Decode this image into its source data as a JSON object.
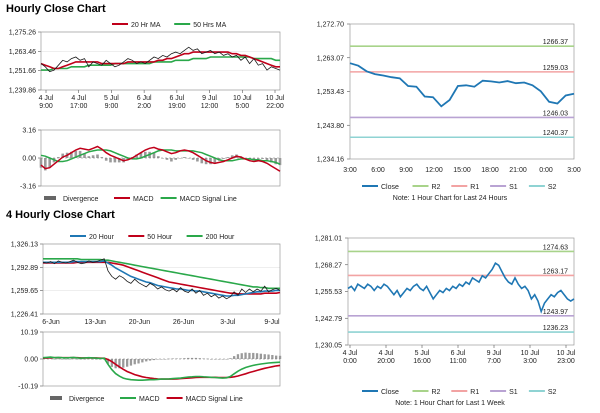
{
  "sections": {
    "hourly_title": "Hourly Close Chart",
    "four_hourly_title": "4 Hourly Close Chart"
  },
  "colors": {
    "close": "#1f77b4",
    "ma_short": "#c0001a",
    "ma_long": "#2aa84a",
    "ma_200": "#1f77b4",
    "hist": "#9a9a9a",
    "r2": "#a8d38a",
    "r1": "#f2a3a3",
    "s1": "#b9a3d3",
    "s2": "#8fd3d3"
  },
  "chart_data": [
    {
      "id": "h1_price_ma",
      "type": "line",
      "legend": [
        "20 Hr MA",
        "50 Hrs MA"
      ],
      "y_ticks": [
        "1,275.26",
        "1,263.46",
        "1,251.66",
        "1,239.86"
      ],
      "ylim": [
        1239.86,
        1275.26
      ],
      "x_ticks": [
        "4 Jul\n9:00",
        "4 Jul\n17:00",
        "5 Jul\n9:00",
        "6 Jul\n2:00",
        "6 Jul\n19:00",
        "9 Jul\n12:00",
        "10 Jul\n5:00",
        "10 Jul\n22:00"
      ],
      "close": [
        1256,
        1254,
        1251,
        1252,
        1255,
        1258,
        1257,
        1259,
        1260,
        1258,
        1259,
        1254,
        1257,
        1256,
        1255,
        1258,
        1256,
        1254,
        1255,
        1257,
        1259,
        1258,
        1256,
        1257,
        1256,
        1258,
        1260,
        1259,
        1261,
        1260,
        1262,
        1263,
        1262,
        1264,
        1266,
        1264,
        1265,
        1262,
        1263,
        1264,
        1262,
        1263,
        1261,
        1262,
        1260,
        1261,
        1258,
        1260,
        1256,
        1259,
        1255,
        1256,
        1252,
        1254,
        1253,
        1252
      ],
      "ma20": [
        1256,
        1255,
        1254,
        1253,
        1253,
        1254,
        1255,
        1256,
        1257,
        1257,
        1257,
        1257,
        1257,
        1257,
        1256,
        1256,
        1256,
        1256,
        1256,
        1256,
        1257,
        1257,
        1257,
        1257,
        1257,
        1257,
        1257,
        1258,
        1258,
        1259,
        1259,
        1260,
        1261,
        1262,
        1262,
        1263,
        1263,
        1263,
        1263,
        1263,
        1263,
        1263,
        1263,
        1263,
        1262,
        1262,
        1261,
        1261,
        1260,
        1259,
        1258,
        1257,
        1256,
        1255,
        1254,
        1254
      ],
      "ma50": [
        1252,
        1252,
        1252,
        1253,
        1253,
        1253,
        1253,
        1254,
        1254,
        1254,
        1254,
        1255,
        1255,
        1255,
        1255,
        1255,
        1255,
        1256,
        1256,
        1256,
        1256,
        1256,
        1256,
        1256,
        1256,
        1256,
        1257,
        1257,
        1257,
        1257,
        1257,
        1258,
        1258,
        1258,
        1258,
        1259,
        1259,
        1259,
        1259,
        1260,
        1260,
        1260,
        1260,
        1260,
        1260,
        1260,
        1260,
        1260,
        1260,
        1259,
        1259,
        1259,
        1259,
        1259,
        1258,
        1258
      ]
    },
    {
      "id": "h1_macd",
      "type": "line",
      "legend": [
        "Divergence",
        "MACD",
        "MACD Signal Line"
      ],
      "y_ticks": [
        "3.16",
        "0.00",
        "-3.16"
      ],
      "ylim": [
        -3.16,
        3.16
      ],
      "macd": [
        -0.8,
        -1.2,
        -1.1,
        -0.7,
        -0.3,
        0.1,
        0.3,
        0.6,
        0.9,
        1.1,
        1.0,
        0.9,
        1.1,
        1.3,
        1.0,
        0.6,
        0.3,
        0.1,
        -0.1,
        -0.3,
        -0.2,
        0.0,
        0.3,
        0.6,
        0.9,
        1.1,
        1.2,
        1.0,
        0.9,
        0.7,
        0.5,
        0.6,
        0.8,
        0.9,
        0.8,
        0.6,
        0.3,
        0.0,
        -0.3,
        -0.5,
        -0.6,
        -0.5,
        -0.4,
        -0.2,
        0.0,
        0.2,
        0.1,
        -0.1,
        -0.3,
        -0.4,
        -0.3,
        -0.4,
        -0.6,
        -0.9,
        -1.2,
        -1.5
      ],
      "signal": [
        0.3,
        0.2,
        0.0,
        -0.2,
        -0.4,
        -0.4,
        -0.3,
        -0.1,
        0.1,
        0.3,
        0.5,
        0.7,
        0.8,
        0.9,
        0.9,
        0.9,
        0.8,
        0.6,
        0.4,
        0.2,
        0.0,
        -0.1,
        -0.1,
        0.0,
        0.2,
        0.4,
        0.6,
        0.8,
        0.9,
        0.9,
        0.9,
        0.8,
        0.8,
        0.8,
        0.8,
        0.8,
        0.7,
        0.6,
        0.4,
        0.2,
        0.0,
        -0.2,
        -0.3,
        -0.3,
        -0.3,
        -0.2,
        -0.1,
        -0.1,
        -0.1,
        -0.2,
        -0.2,
        -0.3,
        -0.3,
        -0.4,
        -0.5,
        -0.7
      ]
    },
    {
      "id": "h1_close_24h",
      "type": "line",
      "legend": [
        "Close",
        "R2",
        "R1",
        "S1",
        "S2"
      ],
      "y_ticks": [
        "1,272.70",
        "1,263.07",
        "1,253.43",
        "1,243.80",
        "1,234.16"
      ],
      "ylim": [
        1234.16,
        1272.7
      ],
      "x_ticks": [
        "3:00",
        "6:00",
        "9:00",
        "12:00",
        "15:00",
        "18:00",
        "21:00",
        "0:00",
        "3:00"
      ],
      "close": [
        1261.5,
        1260.8,
        1259.2,
        1258.4,
        1258.0,
        1257.5,
        1257.2,
        1255.0,
        1254.8,
        1252.0,
        1251.8,
        1249.2,
        1251.0,
        1255.0,
        1255.2,
        1254.8,
        1256.5,
        1256.3,
        1256.0,
        1256.4,
        1255.8,
        1256.0,
        1255.2,
        1253.5,
        1250.5,
        1250.0,
        1252.3,
        1252.8
      ],
      "levels": {
        "R2": 1266.37,
        "R1": 1259.03,
        "S1": 1246.03,
        "S2": 1240.37
      },
      "level_labels": [
        "1266.37",
        "1259.03",
        "1246.03",
        "1240.37"
      ],
      "note": "Note: 1 Hour Chart for Last 24 Hours"
    },
    {
      "id": "h4_price_ma",
      "type": "line",
      "legend": [
        "20 Hour",
        "50 Hour",
        "200 Hour"
      ],
      "y_ticks": [
        "1,326.13",
        "1,292.89",
        "1,259.65",
        "1,226.41"
      ],
      "ylim": [
        1226.41,
        1326.13
      ],
      "x_ticks": [
        "6-Jun",
        "13-Jun",
        "20-Jun",
        "26-Jun",
        "3-Jul",
        "9-Jul"
      ],
      "close": [
        1300,
        1299,
        1301,
        1298,
        1302,
        1300,
        1299,
        1301,
        1303,
        1300,
        1298,
        1299,
        1302,
        1300,
        1301,
        1303,
        1305,
        1288,
        1280,
        1276,
        1281,
        1278,
        1273,
        1270,
        1276,
        1271,
        1268,
        1265,
        1270,
        1267,
        1262,
        1265,
        1261,
        1259,
        1262,
        1258,
        1264,
        1259,
        1257,
        1262,
        1256,
        1260,
        1253,
        1256,
        1251,
        1254,
        1249,
        1252,
        1248,
        1251,
        1258,
        1253,
        1262,
        1257,
        1262,
        1258,
        1262,
        1259,
        1266,
        1258,
        1261,
        1263,
        1260
      ],
      "ma20": [
        1300,
        1300,
        1300,
        1300,
        1300,
        1300,
        1300,
        1300,
        1301,
        1301,
        1301,
        1301,
        1301,
        1301,
        1301,
        1301,
        1302,
        1299,
        1296,
        1292,
        1289,
        1286,
        1283,
        1280,
        1278,
        1276,
        1274,
        1272,
        1271,
        1269,
        1267,
        1266,
        1265,
        1264,
        1263,
        1262,
        1262,
        1261,
        1260,
        1260,
        1259,
        1259,
        1258,
        1257,
        1256,
        1255,
        1254,
        1253,
        1252,
        1252,
        1253,
        1253,
        1254,
        1255,
        1256,
        1257,
        1258,
        1258,
        1259,
        1259,
        1259,
        1260,
        1260
      ],
      "ma50": [
        1299,
        1299,
        1299,
        1299,
        1299,
        1299,
        1299,
        1299,
        1299,
        1300,
        1300,
        1300,
        1300,
        1300,
        1300,
        1300,
        1300,
        1300,
        1299,
        1298,
        1297,
        1296,
        1294,
        1292,
        1290,
        1288,
        1286,
        1284,
        1282,
        1280,
        1278,
        1276,
        1274,
        1272,
        1271,
        1270,
        1269,
        1268,
        1267,
        1266,
        1265,
        1264,
        1263,
        1262,
        1261,
        1260,
        1259,
        1258,
        1257,
        1256,
        1256,
        1255,
        1255,
        1255,
        1255,
        1255,
        1255,
        1255,
        1256,
        1256,
        1256,
        1256,
        1257
      ],
      "ma200": [
        1305,
        1305,
        1305,
        1305,
        1305,
        1305,
        1305,
        1305,
        1305,
        1305,
        1304,
        1304,
        1304,
        1304,
        1304,
        1304,
        1303,
        1303,
        1302,
        1301,
        1300,
        1299,
        1298,
        1297,
        1296,
        1295,
        1294,
        1293,
        1292,
        1291,
        1290,
        1289,
        1288,
        1287,
        1286,
        1285,
        1284,
        1283,
        1282,
        1281,
        1280,
        1279,
        1278,
        1277,
        1276,
        1275,
        1274,
        1273,
        1272,
        1271,
        1270,
        1269,
        1268,
        1267,
        1266,
        1265,
        1265,
        1264,
        1264,
        1263,
        1263,
        1263,
        1263
      ]
    },
    {
      "id": "h4_macd",
      "type": "line",
      "legend": [
        "Divergence",
        "MACD",
        "MACD Signal Line"
      ],
      "y_ticks": [
        "10.19",
        "0.00",
        "-10.19"
      ],
      "ylim": [
        -10.19,
        10.19
      ],
      "macd": [
        0.5,
        0.6,
        0.7,
        0.5,
        0.6,
        0.5,
        0.4,
        0.5,
        0.6,
        0.4,
        0.3,
        0.4,
        0.5,
        0.4,
        0.3,
        0.2,
        0.3,
        -2.0,
        -4.0,
        -5.5,
        -6.5,
        -7.2,
        -7.6,
        -7.8,
        -7.9,
        -8.0,
        -8.0,
        -7.9,
        -7.8,
        -7.8,
        -7.7,
        -7.6,
        -7.6,
        -7.5,
        -7.4,
        -7.3,
        -7.2,
        -7.0,
        -6.8,
        -6.7,
        -6.6,
        -6.6,
        -6.7,
        -6.8,
        -6.9,
        -7.0,
        -7.1,
        -7.2,
        -7.1,
        -6.6,
        -5.6,
        -4.6,
        -3.8,
        -3.2,
        -2.8,
        -2.4,
        -2.1,
        -1.9,
        -1.7,
        -1.5,
        -1.4,
        -1.3,
        -1.2
      ],
      "signal": [
        0.3,
        0.4,
        0.5,
        0.5,
        0.5,
        0.5,
        0.5,
        0.5,
        0.5,
        0.5,
        0.4,
        0.4,
        0.4,
        0.4,
        0.4,
        0.3,
        0.3,
        -0.2,
        -1.0,
        -2.0,
        -3.0,
        -3.9,
        -4.7,
        -5.3,
        -5.9,
        -6.3,
        -6.7,
        -7.0,
        -7.2,
        -7.4,
        -7.5,
        -7.6,
        -7.6,
        -7.6,
        -7.6,
        -7.5,
        -7.4,
        -7.3,
        -7.2,
        -7.1,
        -7.0,
        -6.9,
        -6.9,
        -6.9,
        -6.9,
        -6.9,
        -7.0,
        -7.0,
        -7.0,
        -6.9,
        -6.7,
        -6.4,
        -6.0,
        -5.6,
        -5.1,
        -4.7,
        -4.3,
        -3.9,
        -3.5,
        -3.2,
        -2.9,
        -2.6,
        -2.4
      ]
    },
    {
      "id": "h4_close_week",
      "type": "line",
      "legend": [
        "Close",
        "R2",
        "R1",
        "S1",
        "S2"
      ],
      "y_ticks": [
        "1,281.01",
        "1,268.27",
        "1,255.53",
        "1,242.79",
        "1,230.05"
      ],
      "ylim": [
        1230.05,
        1281.01
      ],
      "x_ticks": [
        "4 Jul\n0:00",
        "4 Jul\n20:00",
        "5 Jul\n16:00",
        "6 Jul\n11:00",
        "9 Jul\n7:00",
        "10 Jul\n3:00",
        "10 Jul\n23:00"
      ],
      "close": [
        1257,
        1258,
        1256,
        1259,
        1258,
        1257,
        1259,
        1258,
        1256,
        1258,
        1257,
        1259,
        1258,
        1256,
        1254,
        1256,
        1253,
        1255,
        1257,
        1256,
        1258,
        1259,
        1257,
        1256,
        1258,
        1255,
        1252,
        1254,
        1256,
        1255,
        1257,
        1256,
        1258,
        1257,
        1259,
        1258,
        1260,
        1259,
        1262,
        1261,
        1260,
        1263,
        1262,
        1264,
        1266,
        1269,
        1268,
        1265,
        1262,
        1260,
        1259,
        1262,
        1259,
        1257,
        1258,
        1256,
        1252,
        1254,
        1251,
        1246,
        1250,
        1252,
        1254,
        1253,
        1255,
        1256,
        1254,
        1252,
        1251,
        1252
      ],
      "levels": {
        "R2": 1274.63,
        "R1": 1263.17,
        "S1": 1243.97,
        "S2": 1236.23
      },
      "level_labels": [
        "1274.63",
        "1263.17",
        "1243.97",
        "1236.23"
      ],
      "note": "Note: 1 Hour Chart for Last 1 Week"
    }
  ]
}
